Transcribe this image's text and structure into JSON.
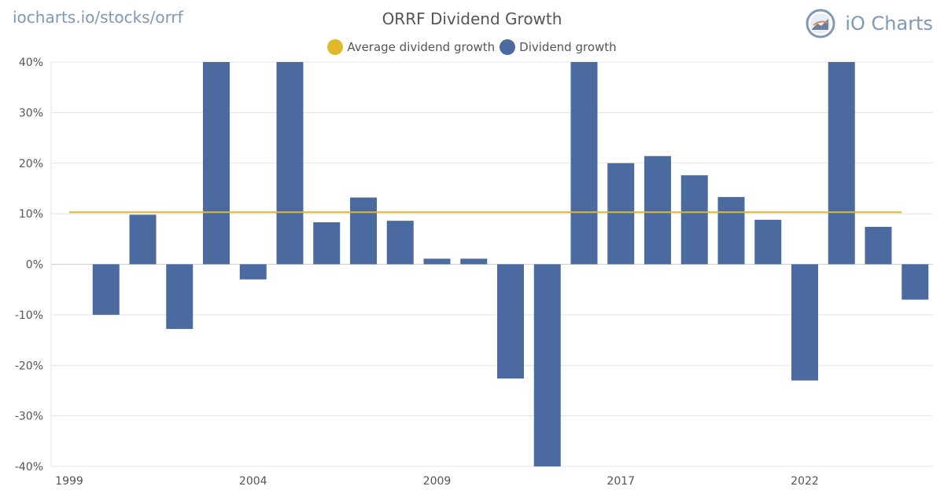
{
  "header": {
    "site_link": "iocharts.io/stocks/orrf",
    "brand_name": "iO Charts"
  },
  "colors": {
    "bar": "#4a6aa0",
    "average_line": "#e0b92a",
    "grid": "#e3e3e3",
    "text": "#555555",
    "brand": "#7f98b8"
  },
  "chart_data": {
    "type": "bar",
    "title": "ORRF Dividend Growth",
    "xlabel": "",
    "ylabel": "",
    "ylim": [
      -40,
      40
    ],
    "y_ticks": [
      -40,
      -30,
      -20,
      -10,
      0,
      10,
      20,
      30,
      40
    ],
    "y_tick_labels": [
      "-40%",
      "-30%",
      "-20%",
      "-10%",
      "0%",
      "10%",
      "20%",
      "30%",
      "40%"
    ],
    "x_tick_labels": [
      {
        "label": "1999",
        "index": 0
      },
      {
        "label": "2004",
        "index": 5
      },
      {
        "label": "2009",
        "index": 10
      },
      {
        "label": "2017",
        "index": 15
      },
      {
        "label": "2022",
        "index": 20
      }
    ],
    "grid": true,
    "legend_position": "top-center",
    "legend": [
      "Average dividend growth",
      "Dividend growth"
    ],
    "series": [
      {
        "name": "Dividend growth",
        "values": [
          null,
          -10,
          9.8,
          -12.8,
          40,
          -3,
          40,
          8.3,
          13.2,
          8.6,
          1.1,
          1.1,
          -22.6,
          -40,
          40,
          20,
          21.4,
          17.6,
          13.3,
          8.8,
          -23,
          40,
          7.4,
          -7
        ]
      },
      {
        "name": "Average dividend growth",
        "value": 10.3
      }
    ]
  }
}
